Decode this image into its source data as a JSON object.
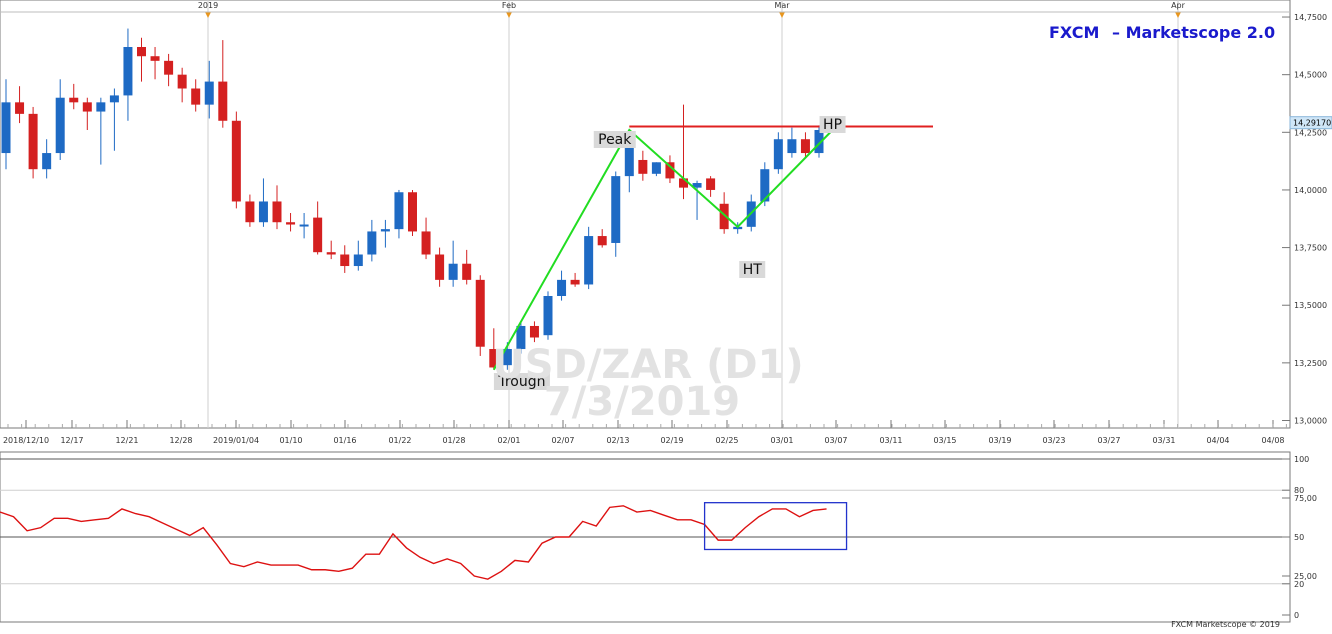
{
  "brand": {
    "prefix": "FXCM",
    "suffix": "– Marketscope 2.0"
  },
  "copyright": "FXCM Marketscope © 2019",
  "colors": {
    "bull": "#1e6ac4",
    "bear": "#d42020",
    "pattern": "#22dd22",
    "level": "#e02020",
    "oscillator": "#dd1111",
    "highlight_box": "#2233cc",
    "brand": "#1a1acc"
  },
  "watermark": {
    "line1": "USD/ZAR (D1)",
    "line2": "7/3/2019"
  },
  "top_markers": [
    "2019",
    "Feb",
    "Mar",
    "Apr"
  ],
  "chart_data": [
    {
      "type": "candlestick",
      "ylim": [
        13.0,
        14.8
      ],
      "y_ticks": [
        "14,7500",
        "14,5000",
        "14,2500",
        "14,0000",
        "13,7500",
        "13,5000",
        "13,2500",
        "13,0000"
      ],
      "last_price": "14,29170",
      "x_ticks": [
        "2018/12/10",
        "12/17",
        "12/21",
        "12/28",
        "2019/01/04",
        "01/10",
        "01/16",
        "01/22",
        "01/28",
        "02/01",
        "02/07",
        "02/13",
        "02/19",
        "02/25",
        "03/01",
        "03/07",
        "03/11",
        "03/15",
        "03/19",
        "03/23",
        "03/27",
        "03/31",
        "04/04",
        "04/08"
      ],
      "candles": [
        {
          "o": 14.16,
          "h": 14.48,
          "l": 14.09,
          "c": 14.38
        },
        {
          "o": 14.38,
          "h": 14.45,
          "l": 14.29,
          "c": 14.33
        },
        {
          "o": 14.33,
          "h": 14.36,
          "l": 14.05,
          "c": 14.09
        },
        {
          "o": 14.09,
          "h": 14.22,
          "l": 14.05,
          "c": 14.16
        },
        {
          "o": 14.16,
          "h": 14.48,
          "l": 14.13,
          "c": 14.4
        },
        {
          "o": 14.4,
          "h": 14.46,
          "l": 14.35,
          "c": 14.38
        },
        {
          "o": 14.38,
          "h": 14.4,
          "l": 14.26,
          "c": 14.34
        },
        {
          "o": 14.34,
          "h": 14.4,
          "l": 14.11,
          "c": 14.38
        },
        {
          "o": 14.38,
          "h": 14.44,
          "l": 14.17,
          "c": 14.41
        },
        {
          "o": 14.41,
          "h": 14.7,
          "l": 14.3,
          "c": 14.62
        },
        {
          "o": 14.62,
          "h": 14.66,
          "l": 14.47,
          "c": 14.58
        },
        {
          "o": 14.58,
          "h": 14.62,
          "l": 14.48,
          "c": 14.56
        },
        {
          "o": 14.56,
          "h": 14.59,
          "l": 14.45,
          "c": 14.5
        },
        {
          "o": 14.5,
          "h": 14.53,
          "l": 14.38,
          "c": 14.44
        },
        {
          "o": 14.44,
          "h": 14.48,
          "l": 14.34,
          "c": 14.37
        },
        {
          "o": 14.37,
          "h": 14.56,
          "l": 14.31,
          "c": 14.47
        },
        {
          "o": 14.47,
          "h": 14.65,
          "l": 14.27,
          "c": 14.3
        },
        {
          "o": 14.3,
          "h": 14.34,
          "l": 13.92,
          "c": 13.95
        },
        {
          "o": 13.95,
          "h": 13.98,
          "l": 13.84,
          "c": 13.86
        },
        {
          "o": 13.86,
          "h": 14.05,
          "l": 13.84,
          "c": 13.95
        },
        {
          "o": 13.95,
          "h": 14.02,
          "l": 13.83,
          "c": 13.86
        },
        {
          "o": 13.86,
          "h": 13.9,
          "l": 13.82,
          "c": 13.85
        },
        {
          "o": 13.85,
          "h": 13.9,
          "l": 13.79,
          "c": 13.85
        },
        {
          "o": 13.88,
          "h": 13.95,
          "l": 13.72,
          "c": 13.73
        },
        {
          "o": 13.73,
          "h": 13.78,
          "l": 13.7,
          "c": 13.72
        },
        {
          "o": 13.72,
          "h": 13.76,
          "l": 13.64,
          "c": 13.67
        },
        {
          "o": 13.67,
          "h": 13.78,
          "l": 13.65,
          "c": 13.72
        },
        {
          "o": 13.72,
          "h": 13.87,
          "l": 13.69,
          "c": 13.82
        },
        {
          "o": 13.82,
          "h": 13.87,
          "l": 13.75,
          "c": 13.83
        },
        {
          "o": 13.83,
          "h": 14.0,
          "l": 13.79,
          "c": 13.99
        },
        {
          "o": 13.99,
          "h": 14.0,
          "l": 13.8,
          "c": 13.82
        },
        {
          "o": 13.82,
          "h": 13.88,
          "l": 13.7,
          "c": 13.72
        },
        {
          "o": 13.72,
          "h": 13.75,
          "l": 13.58,
          "c": 13.61
        },
        {
          "o": 13.61,
          "h": 13.78,
          "l": 13.58,
          "c": 13.68
        },
        {
          "o": 13.68,
          "h": 13.74,
          "l": 13.59,
          "c": 13.61
        },
        {
          "o": 13.61,
          "h": 13.63,
          "l": 13.28,
          "c": 13.32
        },
        {
          "o": 13.31,
          "h": 13.4,
          "l": 13.22,
          "c": 13.23
        },
        {
          "o": 13.24,
          "h": 13.34,
          "l": 13.22,
          "c": 13.31
        },
        {
          "o": 13.31,
          "h": 13.43,
          "l": 13.29,
          "c": 13.41
        },
        {
          "o": 13.41,
          "h": 13.43,
          "l": 13.34,
          "c": 13.36
        },
        {
          "o": 13.37,
          "h": 13.56,
          "l": 13.35,
          "c": 13.54
        },
        {
          "o": 13.54,
          "h": 13.65,
          "l": 13.52,
          "c": 13.61
        },
        {
          "o": 13.61,
          "h": 13.64,
          "l": 13.58,
          "c": 13.59
        },
        {
          "o": 13.59,
          "h": 13.84,
          "l": 13.57,
          "c": 13.8
        },
        {
          "o": 13.8,
          "h": 13.83,
          "l": 13.75,
          "c": 13.76
        },
        {
          "o": 13.77,
          "h": 14.08,
          "l": 13.71,
          "c": 14.06
        },
        {
          "o": 14.06,
          "h": 14.24,
          "l": 13.99,
          "c": 14.23
        },
        {
          "o": 14.13,
          "h": 14.17,
          "l": 14.04,
          "c": 14.07
        },
        {
          "o": 14.07,
          "h": 14.12,
          "l": 14.06,
          "c": 14.12
        },
        {
          "o": 14.12,
          "h": 14.15,
          "l": 14.03,
          "c": 14.05
        },
        {
          "o": 14.05,
          "h": 14.37,
          "l": 13.96,
          "c": 14.01
        },
        {
          "o": 14.01,
          "h": 14.04,
          "l": 13.87,
          "c": 14.03
        },
        {
          "o": 14.05,
          "h": 14.06,
          "l": 13.97,
          "c": 14.0
        },
        {
          "o": 13.94,
          "h": 13.99,
          "l": 13.81,
          "c": 13.83
        },
        {
          "o": 13.83,
          "h": 13.86,
          "l": 13.81,
          "c": 13.84
        },
        {
          "o": 13.84,
          "h": 13.98,
          "l": 13.82,
          "c": 13.95
        },
        {
          "o": 13.95,
          "h": 14.12,
          "l": 13.93,
          "c": 14.09
        },
        {
          "o": 14.09,
          "h": 14.25,
          "l": 14.07,
          "c": 14.22
        },
        {
          "o": 14.16,
          "h": 14.27,
          "l": 14.14,
          "c": 14.22
        },
        {
          "o": 14.22,
          "h": 14.25,
          "l": 14.14,
          "c": 14.16
        },
        {
          "o": 14.16,
          "h": 14.28,
          "l": 14.14,
          "c": 14.26
        },
        {
          "o": 14.26,
          "h": 14.32,
          "l": 14.25,
          "c": 14.29
        }
      ],
      "annotations": [
        {
          "label": "Peak"
        },
        {
          "label": "HP"
        },
        {
          "label": "HT"
        },
        {
          "label": "Trough"
        }
      ],
      "horizontal_level": 14.275
    },
    {
      "type": "line",
      "ylim": [
        0,
        100
      ],
      "y_ticks": [
        "100",
        "80",
        "75,00",
        "50",
        "25,00",
        "20",
        "0"
      ],
      "reference_lines": [
        100,
        80,
        50,
        20
      ],
      "values": [
        66,
        63,
        54,
        56,
        62,
        62,
        60,
        61,
        62,
        68,
        65,
        63,
        59,
        55,
        51,
        56,
        45,
        33,
        31,
        34,
        32,
        32,
        32,
        29,
        29,
        28,
        30,
        39,
        39,
        52,
        43,
        37,
        33,
        36,
        33,
        25,
        23,
        28,
        35,
        34,
        46,
        50,
        50,
        60,
        57,
        69,
        70,
        66,
        67,
        64,
        61,
        61,
        58,
        48,
        48,
        56,
        63,
        68,
        68,
        63,
        67,
        68
      ],
      "highlight_box": {
        "from_index": 52,
        "to_index": 61,
        "y_range": [
          42,
          72
        ]
      }
    }
  ]
}
